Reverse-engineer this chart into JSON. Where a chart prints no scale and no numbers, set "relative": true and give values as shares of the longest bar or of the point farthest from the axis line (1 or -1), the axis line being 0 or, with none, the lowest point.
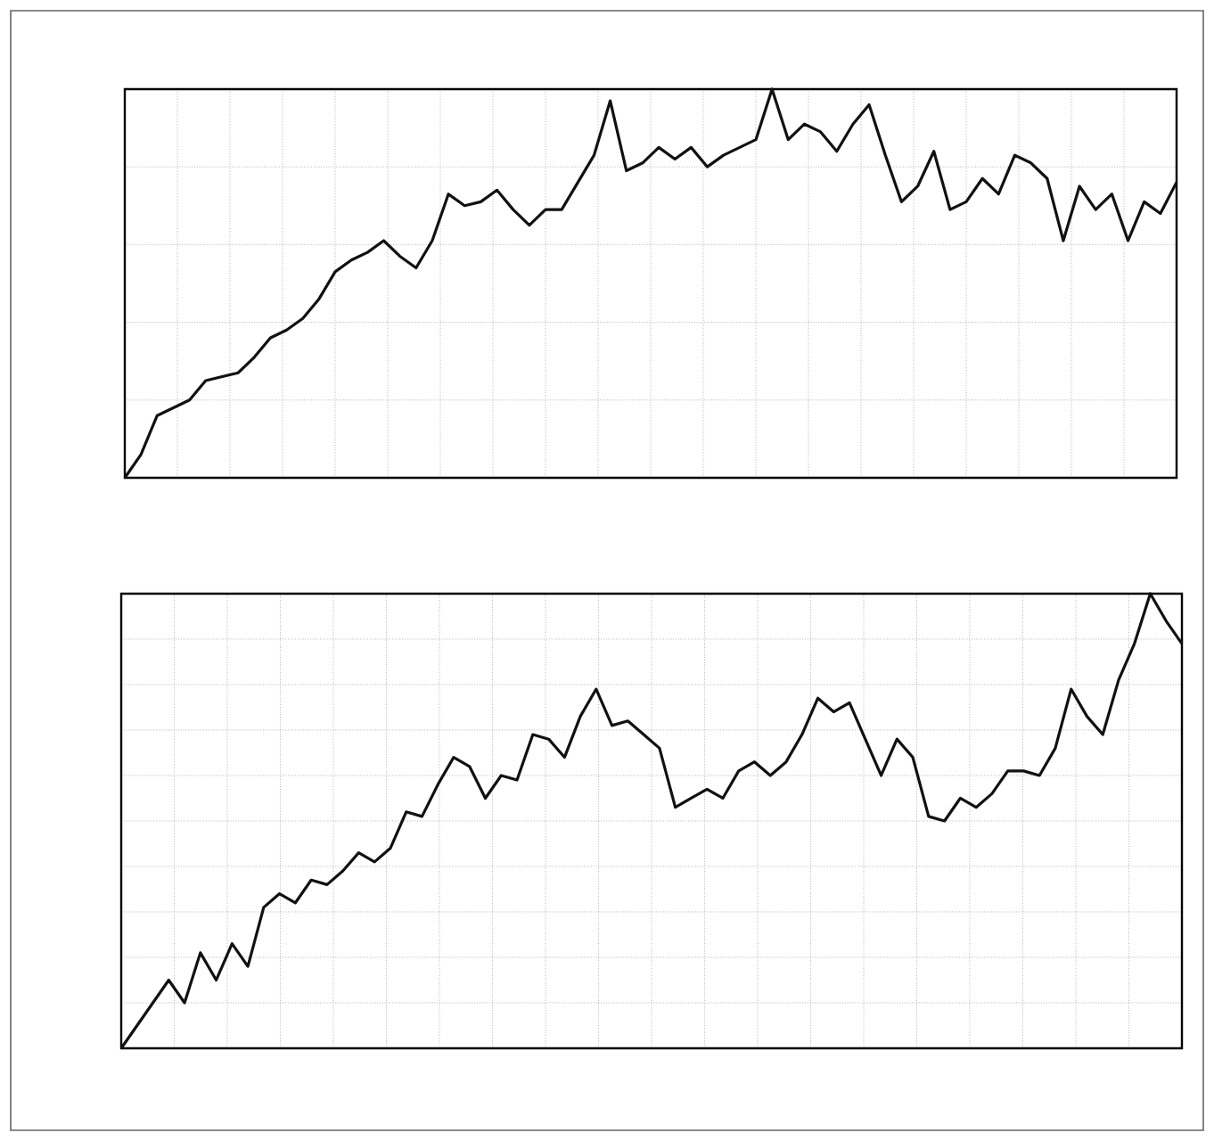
{
  "chart_data": [
    {
      "type": "line",
      "relative": true,
      "grid": true,
      "tick_labels": false,
      "color": "#111111",
      "categories": [
        null,
        null,
        null,
        null,
        null,
        null,
        null,
        null,
        null,
        null,
        null,
        null,
        null,
        null,
        null,
        null,
        null,
        null,
        null,
        null,
        null,
        null,
        null,
        null,
        null,
        null,
        null,
        null,
        null,
        null,
        null,
        null,
        null,
        null,
        null,
        null,
        null,
        null,
        null,
        null,
        null,
        null,
        null,
        null,
        null,
        null,
        null,
        null,
        null,
        null,
        null,
        null,
        null,
        null,
        null,
        null,
        null,
        null,
        null,
        null,
        null,
        null,
        null,
        null,
        null,
        null
      ],
      "values": [
        0,
        0.06,
        0.16,
        0.18,
        0.2,
        0.25,
        0.26,
        0.27,
        0.31,
        0.36,
        0.38,
        0.41,
        0.46,
        0.53,
        0.56,
        0.58,
        0.61,
        0.57,
        0.54,
        0.61,
        0.73,
        0.7,
        0.71,
        0.74,
        0.69,
        0.65,
        0.69,
        0.69,
        0.76,
        0.83,
        0.97,
        0.79,
        0.81,
        0.85,
        0.82,
        0.85,
        0.8,
        0.83,
        0.85,
        0.87,
        1.0,
        0.87,
        0.91,
        0.89,
        0.84,
        0.91,
        0.96,
        0.83,
        0.71,
        0.75,
        0.84,
        0.69,
        0.71,
        0.77,
        0.73,
        0.83,
        0.81,
        0.77,
        0.61,
        0.75,
        0.69,
        0.73,
        0.61,
        0.71,
        0.68,
        0.76
      ]
    },
    {
      "type": "line",
      "relative": true,
      "grid": true,
      "tick_labels": false,
      "color": "#111111",
      "categories": [
        null,
        null,
        null,
        null,
        null,
        null,
        null,
        null,
        null,
        null,
        null,
        null,
        null,
        null,
        null,
        null,
        null,
        null,
        null,
        null,
        null,
        null,
        null,
        null,
        null,
        null,
        null,
        null,
        null,
        null,
        null,
        null,
        null,
        null,
        null,
        null,
        null,
        null,
        null,
        null,
        null,
        null,
        null,
        null,
        null,
        null,
        null,
        null,
        null,
        null,
        null,
        null,
        null,
        null,
        null,
        null,
        null,
        null,
        null,
        null,
        null,
        null,
        null,
        null,
        null,
        null,
        null,
        null
      ],
      "values": [
        0,
        0.05,
        0.1,
        0.15,
        0.1,
        0.21,
        0.15,
        0.23,
        0.18,
        0.31,
        0.34,
        0.32,
        0.37,
        0.36,
        0.39,
        0.43,
        0.41,
        0.44,
        0.52,
        0.51,
        0.58,
        0.64,
        0.62,
        0.55,
        0.6,
        0.59,
        0.69,
        0.68,
        0.64,
        0.73,
        0.79,
        0.71,
        0.72,
        0.69,
        0.66,
        0.53,
        0.55,
        0.57,
        0.55,
        0.61,
        0.63,
        0.6,
        0.63,
        0.69,
        0.77,
        0.74,
        0.76,
        0.68,
        0.6,
        0.68,
        0.64,
        0.51,
        0.5,
        0.55,
        0.53,
        0.56,
        0.61,
        0.61,
        0.6,
        0.66,
        0.79,
        0.73,
        0.69,
        0.81,
        0.89,
        1.0,
        0.94,
        0.89
      ]
    }
  ]
}
